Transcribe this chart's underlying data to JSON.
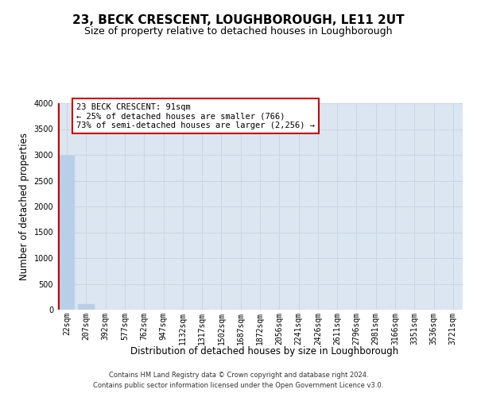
{
  "title": "23, BECK CRESCENT, LOUGHBOROUGH, LE11 2UT",
  "subtitle": "Size of property relative to detached houses in Loughborough",
  "xlabel": "Distribution of detached houses by size in Loughborough",
  "ylabel": "Number of detached properties",
  "footnote1": "Contains HM Land Registry data © Crown copyright and database right 2024.",
  "footnote2": "Contains public sector information licensed under the Open Government Licence v3.0.",
  "categories": [
    "22sqm",
    "207sqm",
    "392sqm",
    "577sqm",
    "762sqm",
    "947sqm",
    "1132sqm",
    "1317sqm",
    "1502sqm",
    "1687sqm",
    "1872sqm",
    "2056sqm",
    "2241sqm",
    "2426sqm",
    "2611sqm",
    "2796sqm",
    "2981sqm",
    "3166sqm",
    "3351sqm",
    "3536sqm",
    "3721sqm"
  ],
  "values": [
    2990,
    115,
    0,
    0,
    0,
    0,
    0,
    0,
    0,
    0,
    0,
    0,
    0,
    0,
    0,
    0,
    0,
    0,
    0,
    0,
    0
  ],
  "bar_color": "#b8cfe8",
  "annotation_text_line1": "23 BECK CRESCENT: 91sqm",
  "annotation_text_line2": "← 25% of detached houses are smaller (766)",
  "annotation_text_line3": "73% of semi-detached houses are larger (2,256) →",
  "annotation_box_facecolor": "#ffffff",
  "annotation_box_edgecolor": "#cc0000",
  "red_line_color": "#cc0000",
  "ylim": [
    0,
    4000
  ],
  "yticks": [
    0,
    500,
    1000,
    1500,
    2000,
    2500,
    3000,
    3500,
    4000
  ],
  "grid_color": "#c8d4e8",
  "background_color": "#dce6f0",
  "title_fontsize": 11,
  "subtitle_fontsize": 9,
  "xlabel_fontsize": 8.5,
  "ylabel_fontsize": 8.5,
  "tick_fontsize": 7,
  "footnote_fontsize": 6,
  "annotation_fontsize": 7.5
}
